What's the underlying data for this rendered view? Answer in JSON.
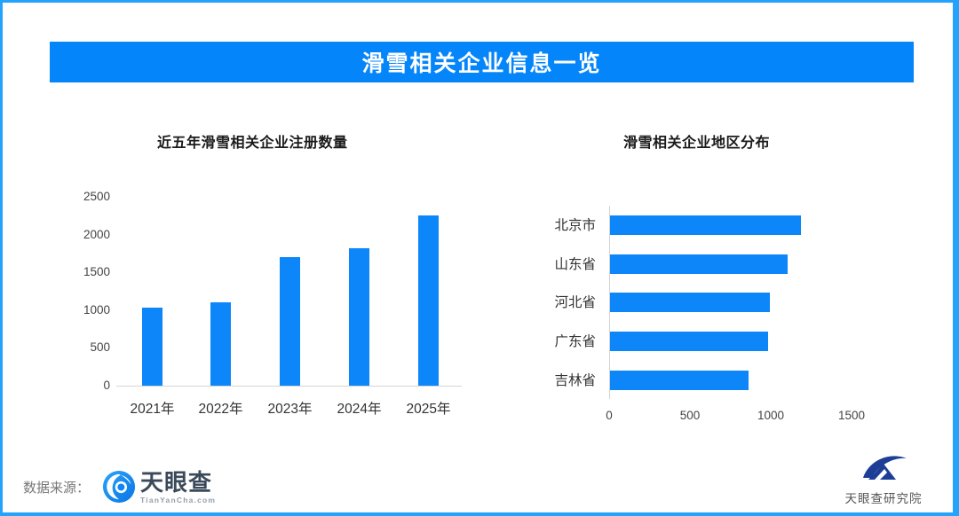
{
  "banner": {
    "title": "滑雪相关企业信息一览"
  },
  "colors": {
    "accent": "#0585fa",
    "border": "#23a3fc",
    "bar": "#0d86fa",
    "axis": "#d4d4d4",
    "navy": "#1e3e96"
  },
  "chart_data": [
    {
      "type": "bar",
      "title": "近五年滑雪相关企业注册数量",
      "categories": [
        "2021年",
        "2022年",
        "2023年",
        "2024年",
        "2025年"
      ],
      "values": [
        1030,
        1100,
        1700,
        1820,
        2250
      ],
      "y_ticks": [
        0,
        500,
        1000,
        1500,
        2000,
        2500
      ],
      "ylim": [
        0,
        2500
      ],
      "grid": false,
      "bar_color": "#0d86fa"
    },
    {
      "type": "horizontal-bar",
      "title": "滑雪相关企业地区分布",
      "categories": [
        "北京市",
        "山东省",
        "河北省",
        "广东省",
        "吉林省"
      ],
      "values": [
        1180,
        1100,
        990,
        980,
        855
      ],
      "x_ticks": [
        0,
        500,
        1000,
        1500
      ],
      "xlim": [
        0,
        1750
      ],
      "grid": false,
      "bar_color": "#0d86fa"
    }
  ],
  "footer": {
    "source_label": "数据来源：",
    "tianyancha": {
      "name": "天眼查",
      "domain": "TianYanCha.com"
    },
    "institute": {
      "name": "天眼查研究院"
    }
  }
}
